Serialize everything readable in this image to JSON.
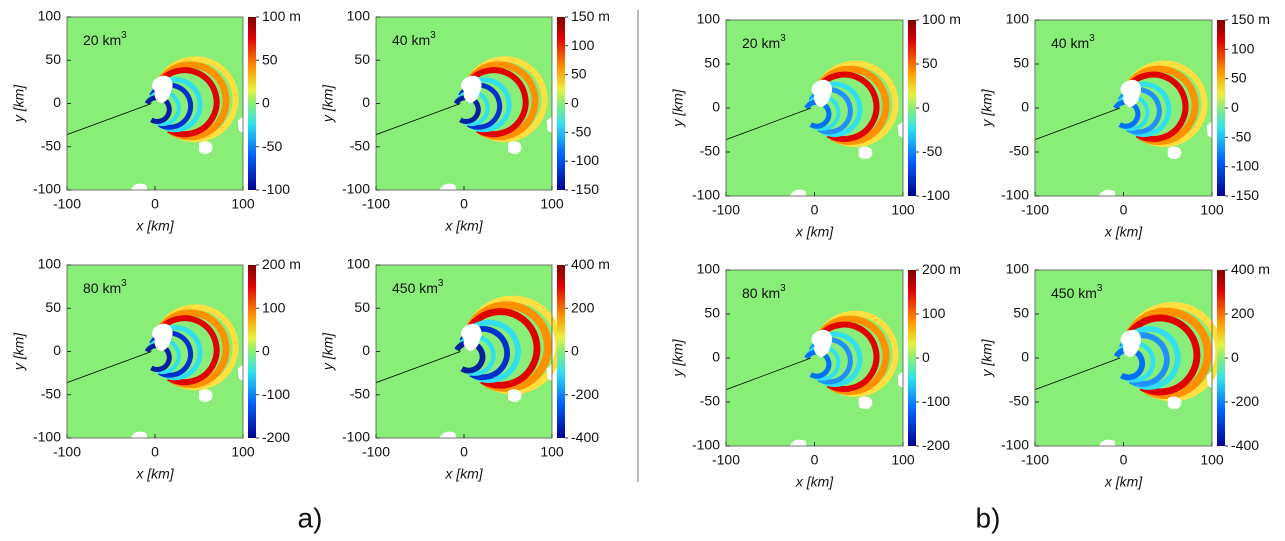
{
  "figure": {
    "groups": [
      {
        "label": "a)",
        "plots": [
          {
            "volume": "20 km",
            "exponent": "3",
            "xlabel": "x [km]",
            "ylabel": "y [km]",
            "xticks": [
              -100,
              0,
              100
            ],
            "yticks": [
              100,
              50,
              0,
              -50,
              -100
            ],
            "cbar_ticks": [
              100,
              50,
              0,
              -50,
              -100
            ],
            "cbar_unit": "m"
          },
          {
            "volume": "40 km",
            "exponent": "3",
            "xlabel": "x [km]",
            "ylabel": "y [km]",
            "xticks": [
              -100,
              0,
              100
            ],
            "yticks": [
              100,
              50,
              0,
              -50,
              -100
            ],
            "cbar_ticks": [
              150,
              100,
              50,
              0,
              -50,
              -100,
              -150
            ],
            "cbar_unit": "m"
          },
          {
            "volume": "80 km",
            "exponent": "3",
            "xlabel": "x [km]",
            "ylabel": "y [km]",
            "xticks": [
              -100,
              0,
              100
            ],
            "yticks": [
              100,
              50,
              0,
              -50,
              -100
            ],
            "cbar_ticks": [
              200,
              100,
              0,
              -100,
              -200
            ],
            "cbar_unit": "m"
          },
          {
            "volume": "450 km",
            "exponent": "3",
            "xlabel": "x [km]",
            "ylabel": "y [km]",
            "xticks": [
              -100,
              0,
              100
            ],
            "yticks": [
              100,
              50,
              0,
              -50,
              -100
            ],
            "cbar_ticks": [
              400,
              200,
              0,
              -200,
              -400
            ],
            "cbar_unit": "m"
          }
        ]
      },
      {
        "label": "b)",
        "plots": [
          {
            "volume": "20 km",
            "exponent": "3",
            "xlabel": "x [km]",
            "ylabel": "y [km]",
            "xticks": [
              -100,
              0,
              100
            ],
            "yticks": [
              100,
              50,
              0,
              -50,
              -100
            ],
            "cbar_ticks": [
              100,
              50,
              0,
              -50,
              -100
            ],
            "cbar_unit": "m"
          },
          {
            "volume": "40 km",
            "exponent": "3",
            "xlabel": "x [km]",
            "ylabel": "y [km]",
            "xticks": [
              -100,
              0,
              100
            ],
            "yticks": [
              100,
              50,
              0,
              -50,
              -100
            ],
            "cbar_ticks": [
              150,
              100,
              50,
              0,
              -50,
              -100,
              -150
            ],
            "cbar_unit": "m"
          },
          {
            "volume": "80 km",
            "exponent": "3",
            "xlabel": "x [km]",
            "ylabel": "y [km]",
            "xticks": [
              -100,
              0,
              100
            ],
            "yticks": [
              100,
              50,
              0,
              -50,
              -100
            ],
            "cbar_ticks": [
              200,
              100,
              0,
              -100,
              -200
            ],
            "cbar_unit": "m"
          },
          {
            "volume": "450 km",
            "exponent": "3",
            "xlabel": "x [km]",
            "ylabel": "y [km]",
            "xticks": [
              -100,
              0,
              100
            ],
            "yticks": [
              100,
              50,
              0,
              -50,
              -100
            ],
            "cbar_ticks": [
              400,
              200,
              0,
              -200,
              -400
            ],
            "cbar_unit": "m"
          }
        ]
      }
    ]
  }
}
